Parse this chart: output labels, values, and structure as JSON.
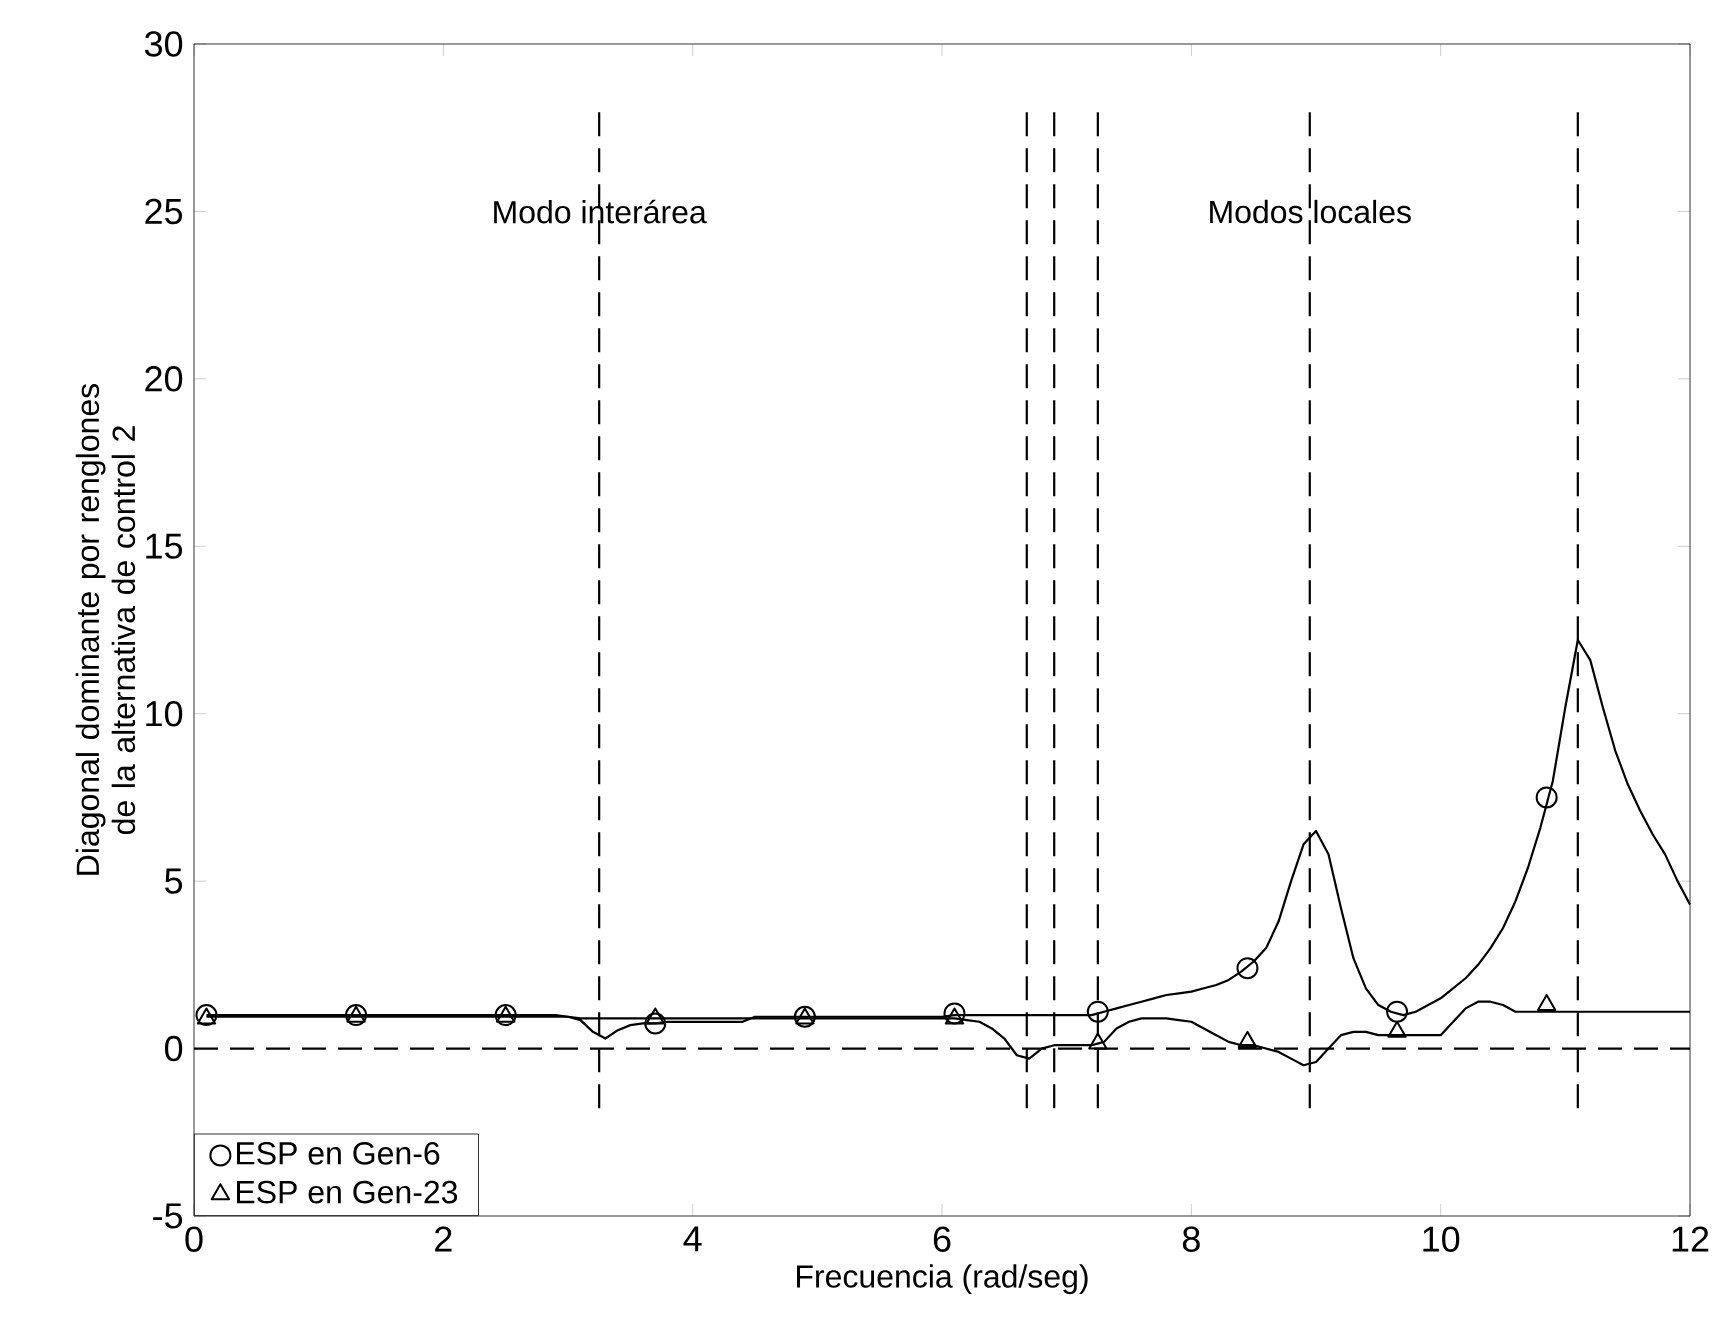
{
  "chart_data": {
    "type": "line",
    "xlabel": "Frecuencia (rad/seg)",
    "ylabel": "Diagonal dominante por renglones de la alternativa de control 2",
    "x": [
      0.1,
      0.2,
      0.3,
      0.4,
      0.5,
      0.6,
      0.7,
      0.8,
      0.9,
      1.0,
      1.1,
      1.2,
      1.3,
      1.4,
      1.5,
      1.6,
      1.7,
      1.8,
      1.9,
      2.0,
      2.1,
      2.2,
      2.3,
      2.4,
      2.5,
      2.6,
      2.7,
      2.8,
      2.9,
      3.0,
      3.1,
      3.2,
      3.3,
      3.4,
      3.5,
      3.6,
      3.7,
      3.8,
      3.9,
      4.0,
      4.1,
      4.2,
      4.3,
      4.4,
      4.5,
      4.6,
      4.7,
      4.8,
      4.9,
      5.0,
      5.1,
      5.2,
      5.3,
      5.4,
      5.5,
      5.6,
      5.7,
      5.8,
      5.9,
      6.0,
      6.1,
      6.2,
      6.3,
      6.4,
      6.5,
      6.6,
      6.7,
      6.8,
      6.9,
      7.0,
      7.1,
      7.2,
      7.3,
      7.4,
      7.5,
      7.6,
      7.7,
      7.8,
      7.9,
      8.0,
      8.1,
      8.2,
      8.3,
      8.4,
      8.5,
      8.6,
      8.7,
      8.8,
      8.9,
      9.0,
      9.1,
      9.2,
      9.3,
      9.4,
      9.5,
      9.6,
      9.7,
      9.8,
      9.9,
      10.0,
      10.1,
      10.2,
      10.3,
      10.4,
      10.5,
      10.6,
      10.7,
      10.8,
      10.9,
      11.0,
      11.1,
      11.2,
      11.3,
      11.4,
      11.5,
      11.6,
      11.7,
      11.8,
      11.9,
      12.0
    ],
    "series": [
      {
        "color": "#000000",
        "values": [
          1.0,
          1.0,
          1.0,
          1.0,
          1.0,
          1.0,
          1.0,
          1.0,
          1.0,
          1.0,
          1.0,
          1.0,
          1.0,
          1.0,
          1.0,
          1.0,
          1.0,
          1.0,
          1.0,
          1.0,
          1.0,
          1.0,
          1.0,
          1.0,
          1.0,
          1.0,
          1.0,
          1.0,
          1.0,
          0.95,
          0.85,
          0.5,
          0.3,
          0.55,
          0.7,
          0.75,
          0.75,
          0.8,
          0.8,
          0.8,
          0.8,
          0.8,
          0.8,
          0.8,
          0.95,
          0.95,
          0.95,
          0.95,
          0.95,
          0.95,
          0.95,
          0.95,
          0.95,
          0.95,
          0.95,
          0.95,
          0.95,
          0.95,
          0.95,
          0.95,
          1.0,
          1.0,
          1.0,
          1.0,
          1.0,
          1.0,
          1.0,
          1.0,
          1.0,
          1.0,
          1.0,
          1.0,
          1.1,
          1.2,
          1.3,
          1.4,
          1.5,
          1.6,
          1.65,
          1.7,
          1.8,
          1.9,
          2.05,
          2.3,
          2.6,
          3.0,
          3.8,
          5.0,
          6.1,
          6.5,
          5.8,
          4.2,
          2.7,
          1.8,
          1.3,
          1.1,
          1.0,
          1.1,
          1.3,
          1.5,
          1.8,
          2.1,
          2.5,
          3.0,
          3.6,
          4.4,
          5.4,
          6.6,
          8.0,
          10.2,
          12.2,
          11.6,
          10.2,
          8.9,
          7.9,
          7.1,
          6.4,
          5.8,
          5.0,
          4.3
        ]
      },
      {
        "color": "#000000",
        "values": [
          0.95,
          0.95,
          0.95,
          0.95,
          0.95,
          0.95,
          0.95,
          0.95,
          0.95,
          0.95,
          0.95,
          0.95,
          0.95,
          0.95,
          0.95,
          0.95,
          0.95,
          0.95,
          0.95,
          0.95,
          0.95,
          0.95,
          0.95,
          0.95,
          0.95,
          0.95,
          0.95,
          0.95,
          0.95,
          0.95,
          0.9,
          0.9,
          0.9,
          0.9,
          0.9,
          0.9,
          0.9,
          0.9,
          0.9,
          0.9,
          0.9,
          0.9,
          0.9,
          0.9,
          0.9,
          0.9,
          0.9,
          0.9,
          0.9,
          0.9,
          0.9,
          0.9,
          0.9,
          0.9,
          0.9,
          0.9,
          0.9,
          0.9,
          0.9,
          0.9,
          0.9,
          0.85,
          0.8,
          0.6,
          0.3,
          -0.2,
          -0.3,
          0.0,
          0.1,
          0.1,
          0.1,
          0.1,
          0.2,
          0.6,
          0.8,
          0.9,
          0.9,
          0.9,
          0.85,
          0.8,
          0.6,
          0.4,
          0.2,
          0.1,
          0.1,
          0.0,
          -0.1,
          -0.3,
          -0.5,
          -0.4,
          0.0,
          0.4,
          0.5,
          0.5,
          0.4,
          0.4,
          0.4,
          0.4,
          0.4,
          0.4,
          0.8,
          1.2,
          1.4,
          1.4,
          1.3,
          1.1,
          1.1,
          1.1,
          1.1,
          1.1,
          1.1,
          1.1,
          1.1,
          1.1,
          1.1,
          1.1,
          1.1,
          1.1,
          1.1,
          1.1
        ]
      },
      {
        "name": "ESP en Gen-6",
        "type": "scatter",
        "color": "#000000",
        "marker": "circle",
        "x": [
          0.1,
          1.3,
          2.5,
          3.7,
          4.9,
          6.1,
          7.25,
          8.45,
          9.65,
          10.85
        ],
        "values": [
          1.0,
          1.0,
          1.0,
          0.75,
          0.95,
          1.05,
          1.1,
          2.4,
          1.1,
          7.5
        ]
      },
      {
        "name": "ESP en Gen-23",
        "type": "scatter",
        "color": "#000000",
        "marker": "triangle",
        "x": [
          0.1,
          1.3,
          2.5,
          3.7,
          4.9,
          6.1,
          7.25,
          8.45,
          9.65,
          10.85
        ],
        "values": [
          0.9,
          0.95,
          0.95,
          0.9,
          0.9,
          0.9,
          0.15,
          0.2,
          0.5,
          1.3
        ]
      }
    ],
    "xlim": [
      0,
      12
    ],
    "ylim": [
      -5,
      30
    ],
    "xticks": [
      0,
      2,
      4,
      6,
      8,
      10,
      12
    ],
    "yticks": [
      -5,
      0,
      5,
      10,
      15,
      20,
      25,
      30
    ],
    "ref_lines": [
      {
        "axis": "y",
        "value": 0,
        "line_style": "dashed"
      },
      {
        "axis": "x",
        "value": 3.25,
        "label": "Modo interárea",
        "line_style": "dashed"
      },
      {
        "axis": "x",
        "value": 6.68,
        "line_style": "dashed"
      },
      {
        "axis": "x",
        "value": 6.9,
        "line_style": "dashed"
      },
      {
        "axis": "x",
        "value": 7.25,
        "line_style": "dashed"
      },
      {
        "axis": "x",
        "value": 8.95,
        "label": "Modos locales",
        "line_style": "dashed"
      },
      {
        "axis": "x",
        "value": 11.1,
        "line_style": "dashed"
      }
    ],
    "legend": "bottom left",
    "line_style": "solid",
    "grid": false
  }
}
